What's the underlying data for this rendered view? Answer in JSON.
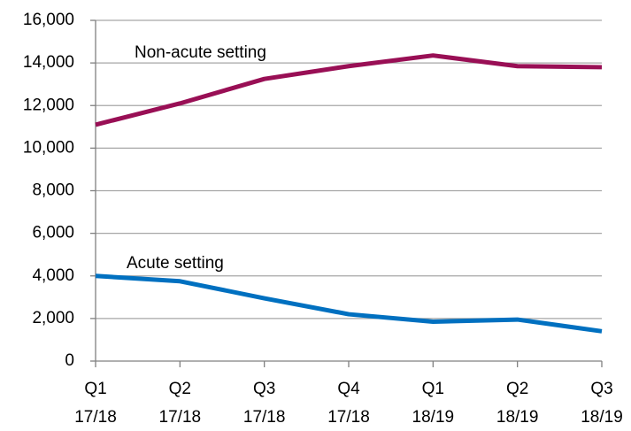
{
  "chart_data": {
    "type": "line",
    "categories": [
      [
        "Q1",
        "17/18"
      ],
      [
        "Q2",
        "17/18"
      ],
      [
        "Q3",
        "17/18"
      ],
      [
        "Q4",
        "17/18"
      ],
      [
        "Q1",
        "18/19"
      ],
      [
        "Q2",
        "18/19"
      ],
      [
        "Q3",
        "18/19"
      ]
    ],
    "series": [
      {
        "name": "Non-acute setting",
        "color": "#990f55",
        "values": [
          11100,
          12100,
          13250,
          13850,
          14350,
          13850,
          13800
        ]
      },
      {
        "name": "Acute setting",
        "color": "#0070c0",
        "values": [
          4000,
          3750,
          2950,
          2200,
          1850,
          1950,
          1400
        ]
      }
    ],
    "ylim": [
      0,
      16000
    ],
    "yticks": [
      0,
      {
        "value": 2000,
        "label": "2,000"
      },
      {
        "value": 4000,
        "label": "4,000"
      },
      {
        "value": 6000,
        "label": "6,000"
      },
      {
        "value": 8000,
        "label": "8,000"
      },
      {
        "value": 10000,
        "label": "10,000"
      },
      {
        "value": 12000,
        "label": "12,000"
      },
      {
        "value": 14000,
        "label": "14,000"
      },
      {
        "value": 16000,
        "label": "16,000"
      }
    ],
    "grid": true
  }
}
